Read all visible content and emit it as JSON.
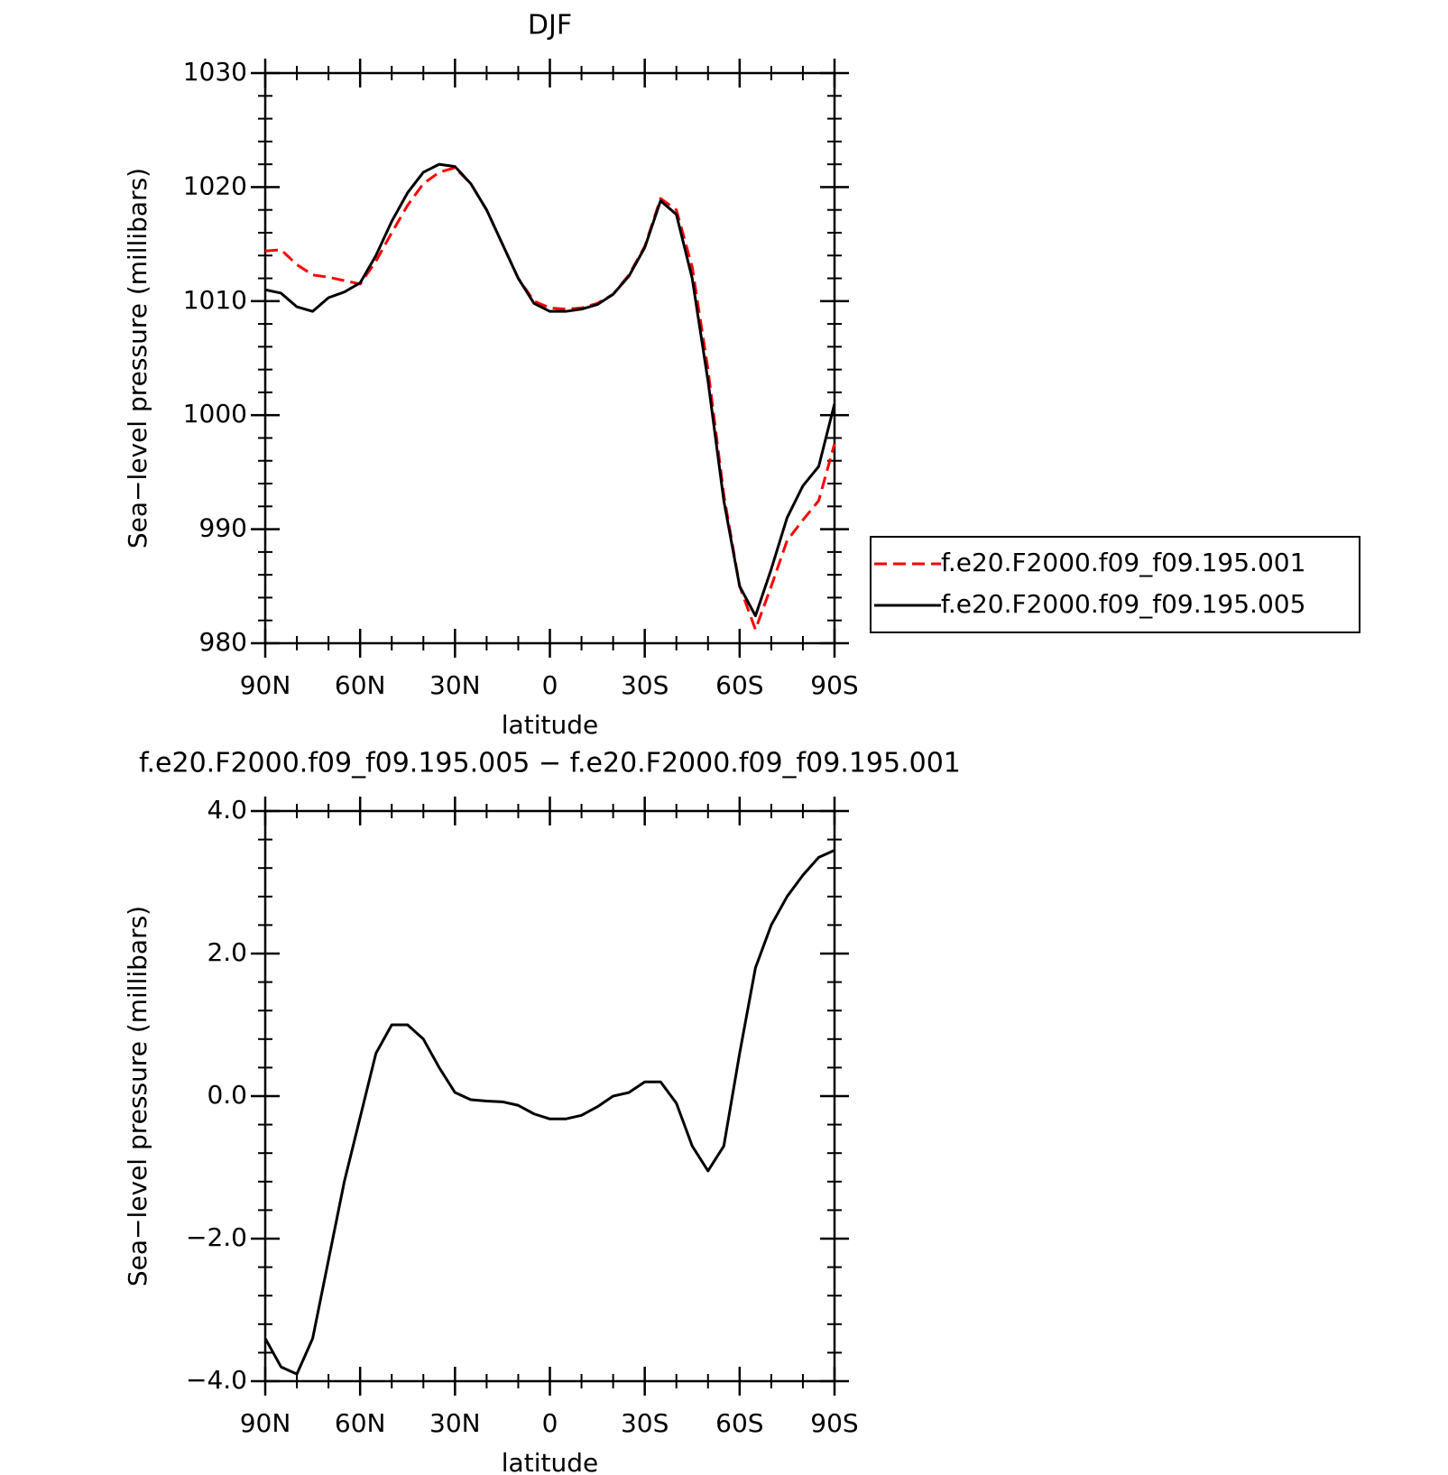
{
  "chart_data": [
    {
      "type": "line",
      "title": "DJF",
      "xlabel": "latitude",
      "ylabel": "Sea−level pressure (millibars)",
      "x": [
        90,
        85,
        80,
        75,
        70,
        65,
        60,
        55,
        50,
        45,
        40,
        35,
        30,
        25,
        20,
        15,
        10,
        5,
        0,
        -5,
        -10,
        -15,
        -20,
        -25,
        -30,
        -35,
        -40,
        -45,
        -50,
        -55,
        -60,
        -65,
        -70,
        -75,
        -80,
        -85,
        -90
      ],
      "xlim": [
        90,
        -90
      ],
      "xticks": [
        {
          "value": 90,
          "label": "90N"
        },
        {
          "value": 60,
          "label": "60N"
        },
        {
          "value": 30,
          "label": "30N"
        },
        0,
        {
          "value": -30,
          "label": "30S"
        },
        {
          "value": -60,
          "label": "60S"
        },
        {
          "value": -90,
          "label": "90S"
        }
      ],
      "ylim": [
        980,
        1030
      ],
      "yticks": [
        980,
        990,
        1000,
        1010,
        1020,
        1030
      ],
      "legend": "right",
      "series": [
        {
          "name": "f.e20.F2000.f09_f09.195.001",
          "color": "#ff0000",
          "dashed": true,
          "values": [
            1014.4,
            1014.5,
            1013.2,
            1012.3,
            1012.1,
            1011.8,
            1011.5,
            1013.5,
            1016,
            1018.4,
            1020.3,
            1021.3,
            1021.7,
            1020.3,
            1018,
            1015,
            1012,
            1010,
            1009.4,
            1009.3,
            1009.4,
            1009.8,
            1010.6,
            1012.3,
            1014.8,
            1019.0,
            1018.0,
            1013,
            1004,
            993,
            985,
            981.2,
            985,
            989,
            990.8,
            992.5,
            997.5
          ]
        },
        {
          "name": "f.e20.F2000.f09_f09.195.005",
          "color": "#000000",
          "dashed": false,
          "values": [
            1011.0,
            1010.7,
            1009.5,
            1009.1,
            1010.3,
            1010.8,
            1011.6,
            1014,
            1017,
            1019.5,
            1021.3,
            1022,
            1021.8,
            1020.3,
            1018,
            1015,
            1012,
            1009.8,
            1009.1,
            1009.1,
            1009.3,
            1009.7,
            1010.6,
            1012.2,
            1014.7,
            1018.8,
            1017.6,
            1012,
            1003,
            992.5,
            985,
            982.4,
            986.5,
            991,
            993.8,
            995.5,
            1001
          ]
        }
      ]
    },
    {
      "type": "line",
      "title": "f.e20.F2000.f09_f09.195.005 − f.e20.F2000.f09_f09.195.001",
      "xlabel": "latitude",
      "ylabel": "Sea−level pressure (millibars)",
      "x": [
        90,
        85,
        80,
        75,
        70,
        65,
        60,
        55,
        50,
        45,
        40,
        35,
        30,
        25,
        20,
        15,
        10,
        5,
        0,
        -5,
        -10,
        -15,
        -20,
        -25,
        -30,
        -35,
        -40,
        -45,
        -50,
        -55,
        -60,
        -65,
        -70,
        -75,
        -80,
        -85,
        -90
      ],
      "xlim": [
        90,
        -90
      ],
      "xticks": [
        {
          "value": 90,
          "label": "90N"
        },
        {
          "value": 60,
          "label": "60N"
        },
        {
          "value": 30,
          "label": "30N"
        },
        0,
        {
          "value": -30,
          "label": "30S"
        },
        {
          "value": -60,
          "label": "60S"
        },
        {
          "value": -90,
          "label": "90S"
        }
      ],
      "ylim": [
        -4,
        4
      ],
      "yticks": [
        {
          "value": -4,
          "label": "−4.0"
        },
        {
          "value": -2,
          "label": "−2.0"
        },
        {
          "value": 0,
          "label": "0.0"
        },
        {
          "value": 2,
          "label": "2.0"
        },
        {
          "value": 4,
          "label": "4.0"
        }
      ],
      "series": [
        {
          "color": "#000000",
          "dashed": false,
          "values": [
            -3.4,
            -3.8,
            -3.9,
            -3.4,
            -2.3,
            -1.2,
            -0.3,
            0.6,
            1.0,
            1.0,
            0.8,
            0.4,
            0.05,
            -0.05,
            -0.07,
            -0.08,
            -0.13,
            -0.25,
            -0.32,
            -0.32,
            -0.27,
            -0.15,
            0.0,
            0.05,
            0.2,
            0.2,
            -0.1,
            -0.7,
            -1.05,
            -0.7,
            0.6,
            1.8,
            2.4,
            2.8,
            3.1,
            3.35,
            3.45
          ]
        }
      ]
    }
  ]
}
